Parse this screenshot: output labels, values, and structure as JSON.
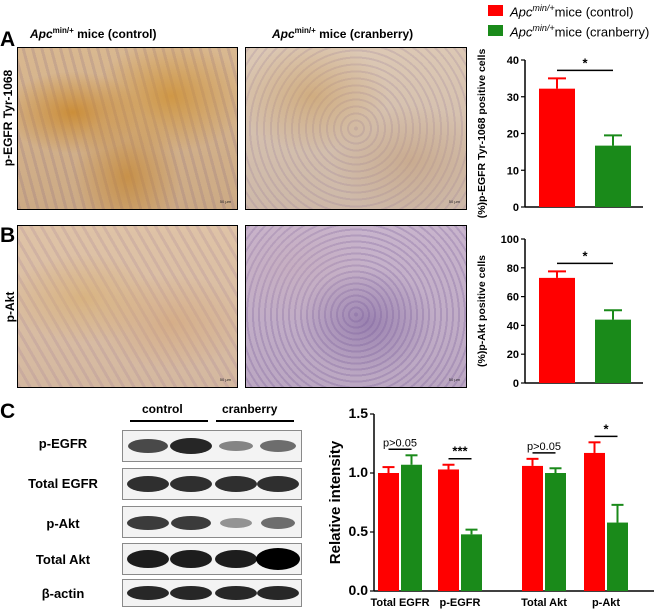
{
  "legend": [
    {
      "prefix": "Apc",
      "sup": "min/+",
      "suffix": "mice (control)",
      "color": "#ff0000"
    },
    {
      "prefix": "Apc",
      "sup": "min/+",
      "suffix": "mice (cranberry)",
      "color": "#1a8a1a"
    }
  ],
  "panelA": {
    "letter": "A",
    "col_titles": [
      {
        "prefix": "Apc",
        "sup": "min/+",
        "suffix": " mice (control)"
      },
      {
        "prefix": "Apc",
        "sup": "min/+",
        "suffix": " mice (cranberry)"
      }
    ],
    "row_label": "p-EGFR Tyr-1068",
    "scale_label": "50 µm"
  },
  "panelB": {
    "letter": "B",
    "row_label": "p-Akt",
    "scale_label": "50 µm"
  },
  "panelC": {
    "letter": "C",
    "group_labels": [
      "control",
      "cranberry"
    ],
    "blot_labels": [
      "p-EGFR",
      "Total EGFR",
      "p-Akt",
      "Total Akt",
      "β-actin"
    ]
  },
  "colors": {
    "control": "#ff0000",
    "cranberry": "#1a8a1a"
  },
  "chart_data": [
    {
      "type": "bar",
      "categories": [
        "control",
        "cranberry"
      ],
      "values": [
        32.2,
        16.7
      ],
      "errors": [
        2.8,
        2.8
      ],
      "ylabel": "(%)p-EGFR Tyr-1068 positive cells",
      "ylim": [
        0,
        40
      ],
      "yticks": [
        "0",
        "10",
        "20",
        "30",
        "40"
      ],
      "significance": "*"
    },
    {
      "type": "bar",
      "categories": [
        "control",
        "cranberry"
      ],
      "values": [
        73,
        44
      ],
      "errors": [
        4.5,
        6.5
      ],
      "ylabel": "(%)p-Akt positive cells",
      "ylim": [
        0,
        100
      ],
      "yticks": [
        "0",
        "20",
        "40",
        "60",
        "80",
        "100"
      ],
      "significance": "*"
    },
    {
      "type": "bar",
      "categories": [
        "Total EGFR",
        "p-EGFR",
        "Total Akt",
        "p-Akt"
      ],
      "series": [
        {
          "values": [
            1.0,
            1.03,
            1.06,
            1.17
          ],
          "errors": [
            0.05,
            0.04,
            0.06,
            0.09
          ]
        },
        {
          "values": [
            1.07,
            0.48,
            1.0,
            0.58
          ],
          "errors": [
            0.08,
            0.04,
            0.04,
            0.15
          ]
        }
      ],
      "ylabel": "Relative intensity",
      "ylim": [
        0,
        1.5
      ],
      "yticks": [
        "0.0",
        "0.5",
        "1.0",
        "1.5"
      ],
      "significance": [
        "p>0.05",
        "***",
        "p>0.05",
        "*"
      ]
    }
  ]
}
